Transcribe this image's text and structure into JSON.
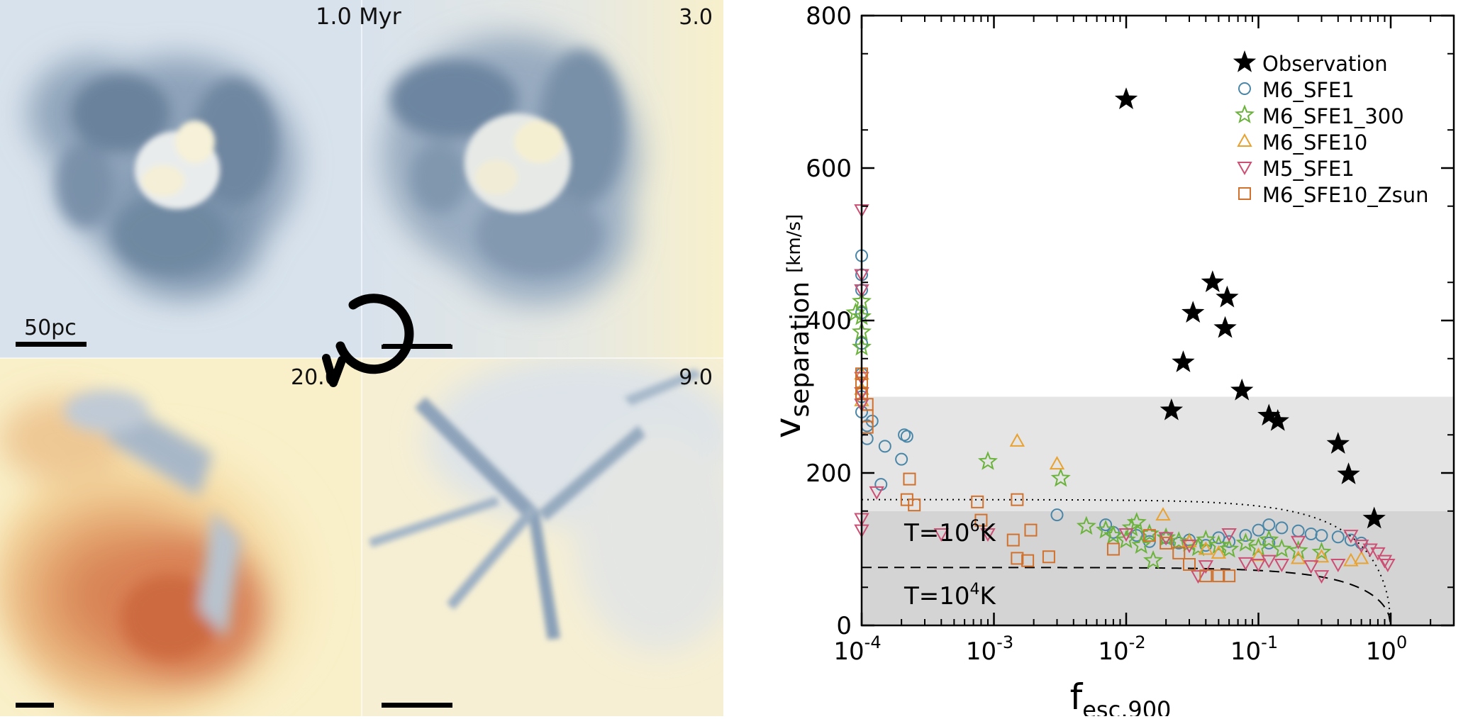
{
  "simulation_panels": {
    "time_labels": [
      "1.0 Myr",
      "3.0",
      "20.0",
      "9.0"
    ],
    "scale_bar_label": "50pc",
    "colors": {
      "cold_gas": "#5f7893",
      "background": "#d8e2ec",
      "warm_gas": "#f9efc8",
      "hot_gas": "#d0764a"
    },
    "cycle_arrow_icon": "circular-arrow-icon"
  },
  "chart_data": {
    "type": "scatter",
    "xlabel_main": "f",
    "xlabel_sub": "esc,900",
    "ylabel_main": "v",
    "ylabel_sub": "separation",
    "ylabel_unit": "[km/s]",
    "xscale": "log",
    "xlim": [
      0.0001,
      3
    ],
    "ylim": [
      0,
      800
    ],
    "x_ticks": [
      {
        "value": 0.0001,
        "base": "10",
        "exp": "-4"
      },
      {
        "value": 0.001,
        "base": "10",
        "exp": "-3"
      },
      {
        "value": 0.01,
        "base": "10",
        "exp": "-2"
      },
      {
        "value": 0.1,
        "base": "10",
        "exp": "-1"
      },
      {
        "value": 1,
        "base": "10",
        "exp": "0"
      }
    ],
    "y_ticks": [
      0,
      200,
      400,
      600,
      800
    ],
    "bands": [
      {
        "y0": 0,
        "y1": 150,
        "color": "#d4d4d4"
      },
      {
        "y0": 150,
        "y1": 300,
        "color": "#e5e5e5"
      }
    ],
    "curves": [
      {
        "style": "dotted",
        "v0": 165,
        "label_base": "T=10",
        "label_exp": "6",
        "label_unit": "K"
      },
      {
        "style": "dashed",
        "v0": 76,
        "label_base": "T=10",
        "label_exp": "4",
        "label_unit": "K"
      }
    ],
    "legend_position": "top-right",
    "series": [
      {
        "name": "Observation",
        "marker": "filled-star",
        "color": "#000000",
        "points": [
          [
            0.01,
            690
          ],
          [
            0.045,
            450
          ],
          [
            0.058,
            430
          ],
          [
            0.032,
            410
          ],
          [
            0.056,
            390
          ],
          [
            0.027,
            345
          ],
          [
            0.075,
            308
          ],
          [
            0.022,
            282
          ],
          [
            0.12,
            275
          ],
          [
            0.14,
            268
          ],
          [
            0.4,
            238
          ],
          [
            0.48,
            198
          ],
          [
            0.75,
            140
          ]
        ]
      },
      {
        "name": "M6_SFE1",
        "marker": "open-circle",
        "color": "#4a86a8",
        "points": [
          [
            0.0001,
            485
          ],
          [
            0.0001,
            460
          ],
          [
            0.0001,
            440
          ],
          [
            0.0001,
            410
          ],
          [
            0.0001,
            370
          ],
          [
            0.0001,
            330
          ],
          [
            0.0001,
            300
          ],
          [
            0.0001,
            280
          ],
          [
            0.00011,
            262
          ],
          [
            0.00011,
            245
          ],
          [
            0.00012,
            268
          ],
          [
            0.00015,
            235
          ],
          [
            0.00021,
            250
          ],
          [
            0.00022,
            248
          ],
          [
            0.0002,
            218
          ],
          [
            0.00014,
            185
          ],
          [
            0.003,
            145
          ],
          [
            0.007,
            132
          ],
          [
            0.008,
            122
          ],
          [
            0.012,
            118
          ],
          [
            0.015,
            110
          ],
          [
            0.02,
            115
          ],
          [
            0.025,
            108
          ],
          [
            0.03,
            112
          ],
          [
            0.04,
            105
          ],
          [
            0.05,
            115
          ],
          [
            0.06,
            110
          ],
          [
            0.08,
            118
          ],
          [
            0.1,
            125
          ],
          [
            0.12,
            132
          ],
          [
            0.15,
            128
          ],
          [
            0.2,
            124
          ],
          [
            0.25,
            120
          ],
          [
            0.3,
            118
          ],
          [
            0.4,
            116
          ],
          [
            0.5,
            112
          ],
          [
            0.6,
            108
          ],
          [
            0.12,
            108
          ]
        ]
      },
      {
        "name": "M6_SFE1_300",
        "marker": "open-star",
        "color": "#6bb33c",
        "points": [
          [
            0.0001,
            425
          ],
          [
            0.0001,
            405
          ],
          [
            0.0001,
            385
          ],
          [
            0.0001,
            365
          ],
          [
            9e-05,
            410
          ],
          [
            0.0009,
            215
          ],
          [
            0.0032,
            193
          ],
          [
            0.005,
            130
          ],
          [
            0.007,
            125
          ],
          [
            0.008,
            118
          ],
          [
            0.01,
            112
          ],
          [
            0.011,
            128
          ],
          [
            0.012,
            135
          ],
          [
            0.013,
            105
          ],
          [
            0.015,
            120
          ],
          [
            0.016,
            85
          ],
          [
            0.02,
            115
          ],
          [
            0.025,
            110
          ],
          [
            0.03,
            108
          ],
          [
            0.035,
            102
          ],
          [
            0.04,
            112
          ],
          [
            0.05,
            105
          ],
          [
            0.06,
            100
          ],
          [
            0.08,
            108
          ],
          [
            0.1,
            102
          ],
          [
            0.15,
            100
          ],
          [
            0.2,
            98
          ],
          [
            0.3,
            96
          ],
          [
            0.12,
            112
          ]
        ]
      },
      {
        "name": "M6_SFE10",
        "marker": "open-triangle-up",
        "color": "#e8a232",
        "points": [
          [
            0.0001,
            330
          ],
          [
            0.0001,
            310
          ],
          [
            0.0001,
            295
          ],
          [
            0.0015,
            242
          ],
          [
            0.003,
            212
          ],
          [
            0.019,
            145
          ],
          [
            0.03,
            110
          ],
          [
            0.04,
            100
          ],
          [
            0.05,
            95
          ],
          [
            0.1,
            92
          ],
          [
            0.2,
            88
          ],
          [
            0.3,
            90
          ],
          [
            0.5,
            85
          ],
          [
            0.6,
            88
          ]
        ]
      },
      {
        "name": "M5_SFE1",
        "marker": "open-triangle-down",
        "color": "#cc4f74",
        "points": [
          [
            0.0001,
            545
          ],
          [
            0.0001,
            460
          ],
          [
            0.0001,
            440
          ],
          [
            0.0001,
            325
          ],
          [
            0.0001,
            305
          ],
          [
            0.0001,
            290
          ],
          [
            0.0001,
            140
          ],
          [
            0.0001,
            125
          ],
          [
            0.00013,
            175
          ],
          [
            0.0004,
            120
          ],
          [
            0.0009,
            120
          ],
          [
            0.01,
            120
          ],
          [
            0.02,
            115
          ],
          [
            0.03,
            105
          ],
          [
            0.035,
            65
          ],
          [
            0.04,
            78
          ],
          [
            0.06,
            120
          ],
          [
            0.08,
            82
          ],
          [
            0.1,
            80
          ],
          [
            0.12,
            85
          ],
          [
            0.15,
            80
          ],
          [
            0.2,
            110
          ],
          [
            0.25,
            78
          ],
          [
            0.3,
            65
          ],
          [
            0.4,
            80
          ],
          [
            0.5,
            118
          ],
          [
            0.6,
            105
          ],
          [
            0.7,
            100
          ],
          [
            0.8,
            95
          ],
          [
            0.9,
            85
          ],
          [
            0.95,
            80
          ]
        ]
      },
      {
        "name": "M6_SFE10_Zsun",
        "marker": "open-square",
        "color": "#d0712e",
        "points": [
          [
            0.0001,
            330
          ],
          [
            0.0001,
            318
          ],
          [
            0.0001,
            305
          ],
          [
            0.00011,
            290
          ],
          [
            0.00011,
            275
          ],
          [
            0.00011,
            260
          ],
          [
            0.00023,
            192
          ],
          [
            0.00022,
            165
          ],
          [
            0.00025,
            158
          ],
          [
            0.00075,
            162
          ],
          [
            0.0008,
            138
          ],
          [
            0.0015,
            165
          ],
          [
            0.0014,
            112
          ],
          [
            0.0019,
            125
          ],
          [
            0.0015,
            88
          ],
          [
            0.0018,
            85
          ],
          [
            0.0026,
            90
          ],
          [
            0.015,
            118
          ],
          [
            0.02,
            108
          ],
          [
            0.025,
            95
          ],
          [
            0.03,
            80
          ],
          [
            0.04,
            65
          ],
          [
            0.05,
            65
          ],
          [
            0.06,
            65
          ],
          [
            0.008,
            100
          ]
        ]
      }
    ]
  }
}
